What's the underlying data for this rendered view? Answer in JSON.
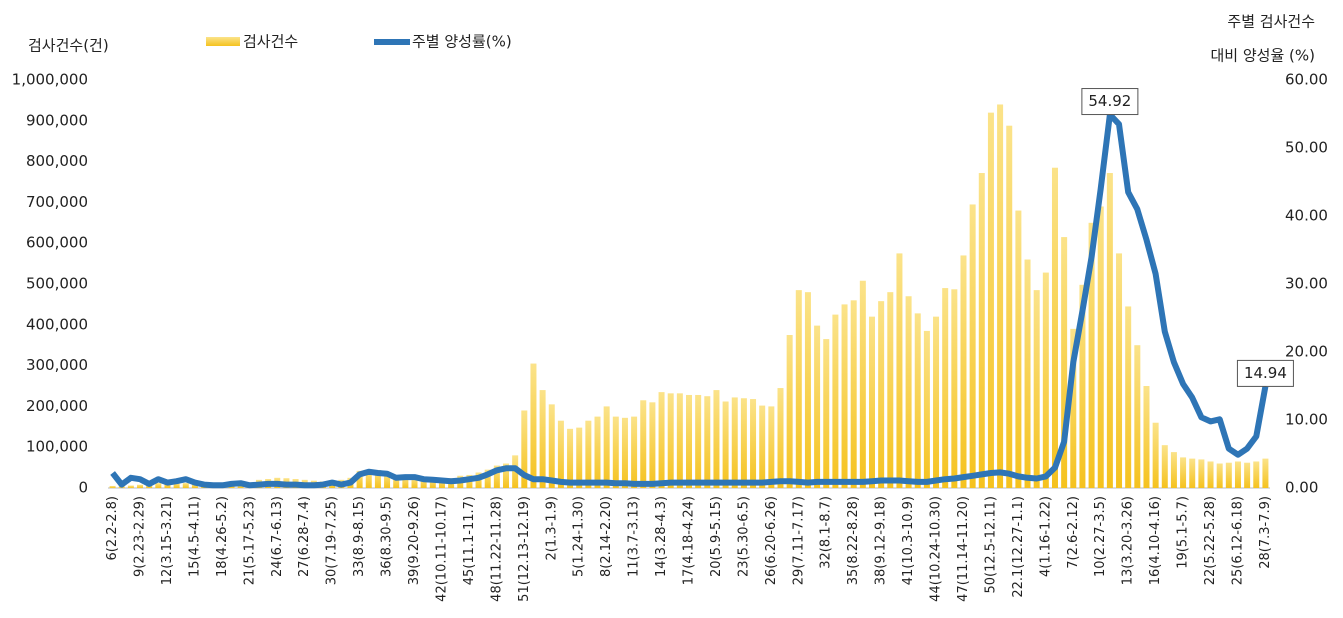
{
  "chart_data": {
    "type": "bar_line",
    "y_label": "검사건수(건)",
    "y2_label": [
      "주별 검사건수",
      "대비 양성율 (%)"
    ],
    "categories": [
      "6(2.2-2.8)",
      null,
      null,
      "9(2.23-2.29)",
      null,
      null,
      "12(3.15-3.21)",
      null,
      null,
      "15(4.5-4.11)",
      null,
      null,
      "18(4.26-5.2)",
      null,
      null,
      "21(5.17-5.23)",
      null,
      null,
      "24(6.7-6.13)",
      null,
      null,
      "27(6.28-7.4)",
      null,
      null,
      "30(7.19-7.25)",
      null,
      null,
      "33(8.9-8.15)",
      null,
      null,
      "36(8.30-9.5)",
      null,
      null,
      "39(9.20-9.26)",
      null,
      null,
      "42(10.11-10.17)",
      null,
      null,
      "45(11.1-11.7)",
      null,
      null,
      "48(11.22-11.28)",
      null,
      null,
      "51(12.13-12.19)",
      null,
      null,
      "2(1.3-1.9)",
      null,
      null,
      "5(1.24-1.30)",
      null,
      null,
      "8(2.14-2.20)",
      null,
      null,
      "11(3.7-3.13)",
      null,
      null,
      "14(3.28-4.3)",
      null,
      null,
      "17(4.18-4.24)",
      null,
      null,
      "20(5.9-5.15)",
      null,
      null,
      "23(5.30-6.5)",
      null,
      null,
      "26(6.20-6.26)",
      null,
      null,
      "29(7.11-7.17)",
      null,
      null,
      "32(8.1-8.7)",
      null,
      null,
      "35(8.22-8.28)",
      null,
      null,
      "38(9.12-9.18)",
      null,
      null,
      "41(10.3-10.9)",
      null,
      null,
      "44(10.24-10.30)",
      null,
      null,
      "47(11.14-11.20)",
      null,
      null,
      "50(12.5-12.11)",
      null,
      null,
      "22.1(12.27-1.1)",
      null,
      null,
      "4(1.16-1.22)",
      null,
      null,
      "7(2.6-2.12)",
      null,
      null,
      "10(2.27-3.5)",
      null,
      null,
      "13(3.20-3.26)",
      null,
      null,
      "16(4.10-4.16)",
      null,
      null,
      "19(5.1-5.7)",
      null,
      null,
      "22(5.22-5.28)",
      null,
      null,
      "25(6.12-6.18)",
      null,
      null,
      "28(7.3-7.9)"
    ],
    "series": [
      {
        "name": "검사건수",
        "color": "#f7c930",
        "axis": "y",
        "kind": "bar",
        "values": [
          5000,
          4000,
          6000,
          8000,
          10000,
          12000,
          15000,
          13000,
          12000,
          10000,
          8000,
          7000,
          7000,
          9000,
          10000,
          12000,
          20000,
          22000,
          25000,
          24000,
          22000,
          20000,
          18000,
          16000,
          18000,
          20000,
          25000,
          42000,
          45000,
          44000,
          38000,
          30000,
          28000,
          25000,
          24000,
          22000,
          22000,
          24000,
          30000,
          32000,
          38000,
          45000,
          55000,
          60000,
          80000,
          190000,
          305000,
          240000,
          205000,
          165000,
          145000,
          148000,
          165000,
          175000,
          200000,
          175000,
          172000,
          175000,
          215000,
          210000,
          235000,
          232000,
          232000,
          228000,
          228000,
          225000,
          240000,
          212000,
          222000,
          220000,
          218000,
          202000,
          200000,
          245000,
          375000,
          485000,
          480000,
          398000,
          365000,
          425000,
          450000,
          460000,
          508000,
          420000,
          458000,
          480000,
          575000,
          470000,
          428000,
          385000,
          420000,
          490000,
          487000,
          570000,
          695000,
          772000,
          920000,
          940000,
          888000,
          680000,
          560000,
          485000,
          528000,
          785000,
          615000,
          390000,
          498000,
          650000,
          690000,
          772000,
          575000,
          445000,
          350000,
          250000,
          160000,
          105000,
          88000,
          75000,
          72000,
          70000,
          65000,
          60000,
          62000,
          65000,
          62000,
          65000,
          72000
        ]
      },
      {
        "name": "주별 양성률(%)",
        "color": "#2e75b6",
        "axis": "y2",
        "kind": "line",
        "values": [
          2.2,
          0.5,
          1.5,
          1.3,
          0.6,
          1.3,
          0.8,
          1.0,
          1.3,
          0.8,
          0.5,
          0.4,
          0.4,
          0.6,
          0.7,
          0.4,
          0.5,
          0.6,
          0.6,
          0.5,
          0.5,
          0.4,
          0.4,
          0.5,
          0.8,
          0.5,
          0.8,
          2.0,
          2.4,
          2.2,
          2.1,
          1.5,
          1.6,
          1.6,
          1.3,
          1.2,
          1.1,
          1.0,
          1.1,
          1.3,
          1.5,
          2.0,
          2.6,
          2.9,
          2.9,
          1.9,
          1.3,
          1.3,
          1.1,
          0.9,
          0.8,
          0.8,
          0.8,
          0.8,
          0.8,
          0.7,
          0.7,
          0.6,
          0.6,
          0.6,
          0.7,
          0.8,
          0.8,
          0.8,
          0.8,
          0.8,
          0.8,
          0.8,
          0.8,
          0.8,
          0.8,
          0.8,
          0.9,
          1.0,
          1.0,
          0.9,
          0.8,
          0.9,
          0.9,
          0.9,
          0.9,
          0.9,
          0.9,
          1.0,
          1.1,
          1.1,
          1.1,
          1.0,
          0.9,
          0.9,
          1.1,
          1.3,
          1.4,
          1.6,
          1.8,
          2.0,
          2.2,
          2.3,
          2.1,
          1.7,
          1.5,
          1.4,
          1.7,
          3.0,
          6.8,
          18.5,
          26,
          34,
          44,
          54.92,
          53.5,
          43.5,
          41,
          36.5,
          31.5,
          23,
          18.5,
          15.3,
          13.3,
          10.4,
          9.8,
          10.1,
          5.8,
          4.9,
          5.8,
          7.6,
          14.94
        ]
      }
    ],
    "ylim": [
      0,
      1000000
    ],
    "yticks": [
      0,
      {
        "value": 100000,
        "label": "100,000"
      },
      {
        "value": 200000,
        "label": "200,000"
      },
      {
        "value": 300000,
        "label": "300,000"
      },
      {
        "value": 400000,
        "label": "400,000"
      },
      {
        "value": 500000,
        "label": "500,000"
      },
      {
        "value": 600000,
        "label": "600,000"
      },
      {
        "value": 700000,
        "label": "700,000"
      },
      {
        "value": 800000,
        "label": "800,000"
      },
      {
        "value": 900000,
        "label": "900,000"
      },
      {
        "value": 1000000,
        "label": "1,000,000"
      }
    ],
    "y2lim": [
      0,
      60
    ],
    "y2ticks": [
      {
        "value": 0,
        "label": "0.00"
      },
      {
        "value": 10,
        "label": "10.00"
      },
      {
        "value": 20,
        "label": "20.00"
      },
      {
        "value": 30,
        "label": "30.00"
      },
      {
        "value": 40,
        "label": "40.00"
      },
      {
        "value": 50,
        "label": "50.00"
      },
      {
        "value": 60,
        "label": "60.00"
      }
    ],
    "grid": false
  }
}
